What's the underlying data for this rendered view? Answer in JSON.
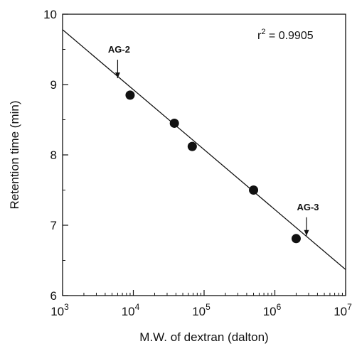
{
  "chart_data": {
    "type": "scatter",
    "title": "",
    "xlabel": "M.W. of dextran (dalton)",
    "ylabel": "Retention time (min)",
    "x_scale": "log",
    "xlim": [
      1000,
      10000000
    ],
    "ylim": [
      6,
      10
    ],
    "x_ticks": [
      1000,
      10000,
      100000,
      1000000,
      10000000
    ],
    "x_tick_labels": [
      {
        "base": "10",
        "exp": "3"
      },
      {
        "base": "10",
        "exp": "4"
      },
      {
        "base": "10",
        "exp": "5"
      },
      {
        "base": "10",
        "exp": "6"
      },
      {
        "base": "10",
        "exp": "7"
      }
    ],
    "y_ticks": [
      6,
      7,
      8,
      9,
      10
    ],
    "y_tick_labels": [
      "6",
      "7",
      "8",
      "9",
      "10"
    ],
    "grid": false,
    "points": [
      {
        "x": 9000,
        "y": 8.85
      },
      {
        "x": 38000,
        "y": 8.45
      },
      {
        "x": 68000,
        "y": 8.12
      },
      {
        "x": 500000,
        "y": 7.5
      },
      {
        "x": 2000000,
        "y": 6.81
      }
    ],
    "fit_line": {
      "from": {
        "x": 1000,
        "y": 9.78
      },
      "to": {
        "x": 10000000,
        "y": 6.37
      }
    },
    "r_squared": {
      "prefix": "r",
      "exp": "2",
      "value": " = 0.9905"
    },
    "annotations": [
      {
        "text": "AG-2",
        "x": 6000,
        "y": 9.05
      },
      {
        "text": "AG-3",
        "x": 2800000,
        "y": 6.81
      }
    ]
  }
}
